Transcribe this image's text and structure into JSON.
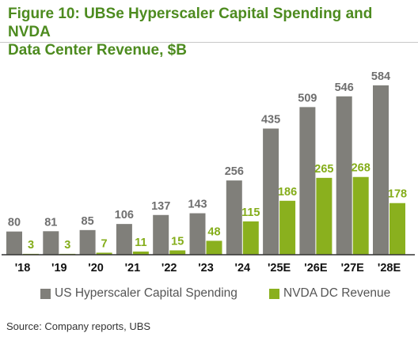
{
  "figure": {
    "title_line1": "Figure 10: UBSe Hyperscaler Capital Spending and NVDA",
    "title_line2": "Data Center Revenue, $B",
    "source": "Source: Company reports, UBS"
  },
  "colors": {
    "title": "#4d8b1f",
    "capex": "#807f7a",
    "nvda": "#8ab01e",
    "capex_label": "#6f6f6f",
    "nvda_label": "#84ad1a"
  },
  "chart_data": {
    "type": "bar",
    "title": "Figure 10: UBSe Hyperscaler Capital Spending and NVDA Data Center Revenue, $B",
    "categories": [
      "'18",
      "'19",
      "'20",
      "'21",
      "'22",
      "'23",
      "'24",
      "'25E",
      "'26E",
      "'27E",
      "'28E"
    ],
    "series": [
      {
        "name": "US Hyperscaler Capital Spending",
        "values": [
          80,
          81,
          85,
          106,
          137,
          143,
          256,
          435,
          509,
          546,
          584
        ]
      },
      {
        "name": "NVDA DC Revenue",
        "values": [
          3,
          3,
          7,
          11,
          15,
          48,
          115,
          186,
          265,
          268,
          178
        ]
      }
    ],
    "ylim": [
      0,
      600
    ],
    "grid": false,
    "legend_position": "bottom"
  }
}
